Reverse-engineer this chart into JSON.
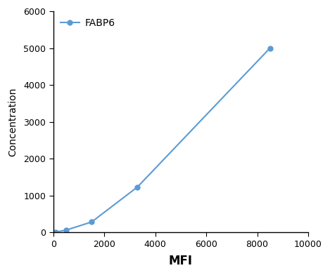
{
  "x": [
    100,
    500,
    1500,
    3300,
    8500
  ],
  "y": [
    8,
    60,
    280,
    1230,
    5000
  ],
  "line_color": "#5b9bd5",
  "marker_color": "#5b9bd5",
  "marker_style": "o",
  "marker_size": 5,
  "line_width": 1.5,
  "legend_label": "FABP6",
  "xlabel": "MFI",
  "ylabel": "Concentration",
  "xlim": [
    0,
    10000
  ],
  "ylim": [
    0,
    6000
  ],
  "xticks": [
    0,
    2000,
    4000,
    6000,
    8000,
    10000
  ],
  "yticks": [
    0,
    1000,
    2000,
    3000,
    4000,
    5000,
    6000
  ],
  "xlabel_fontsize": 12,
  "ylabel_fontsize": 10,
  "tick_fontsize": 9,
  "legend_fontsize": 10,
  "background_color": "#ffffff"
}
